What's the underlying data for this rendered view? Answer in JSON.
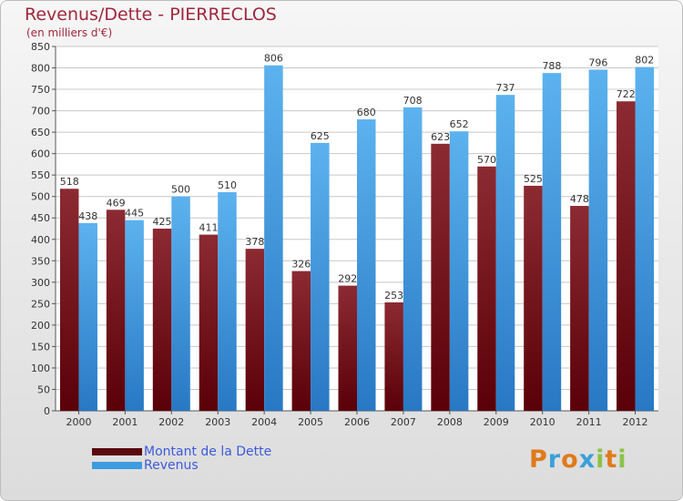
{
  "chart_data": {
    "type": "bar",
    "title": "Revenus/Dette - PIERRECLOS",
    "subtitle": "(en milliers d'€)",
    "categories": [
      "2000",
      "2001",
      "2002",
      "2003",
      "2004",
      "2005",
      "2006",
      "2007",
      "2008",
      "2009",
      "2010",
      "2011",
      "2012"
    ],
    "series": [
      {
        "name": "Montant de la Dette",
        "color": "#7a1018",
        "values": [
          518,
          469,
          425,
          411,
          378,
          326,
          292,
          253,
          623,
          570,
          525,
          478,
          722
        ]
      },
      {
        "name": "Revenus",
        "color": "#3d9be0",
        "values": [
          438,
          445,
          500,
          510,
          806,
          625,
          680,
          708,
          652,
          737,
          788,
          796,
          802
        ]
      }
    ],
    "ylim": [
      0,
      850
    ],
    "yticks": [
      0,
      50,
      100,
      150,
      200,
      250,
      300,
      350,
      400,
      450,
      500,
      550,
      600,
      650,
      700,
      750,
      800,
      850
    ],
    "grid": true,
    "legend": "bottom-left"
  },
  "logo": {
    "text": "Proxiti",
    "letters": [
      "P",
      "r",
      "o",
      "x",
      "i",
      "t",
      "i"
    ],
    "colors": [
      "#e07a1a",
      "#3aa0d8",
      "#e07a1a",
      "#3aa0d8",
      "#8bc34a",
      "#e07a1a",
      "#8bc34a"
    ]
  }
}
